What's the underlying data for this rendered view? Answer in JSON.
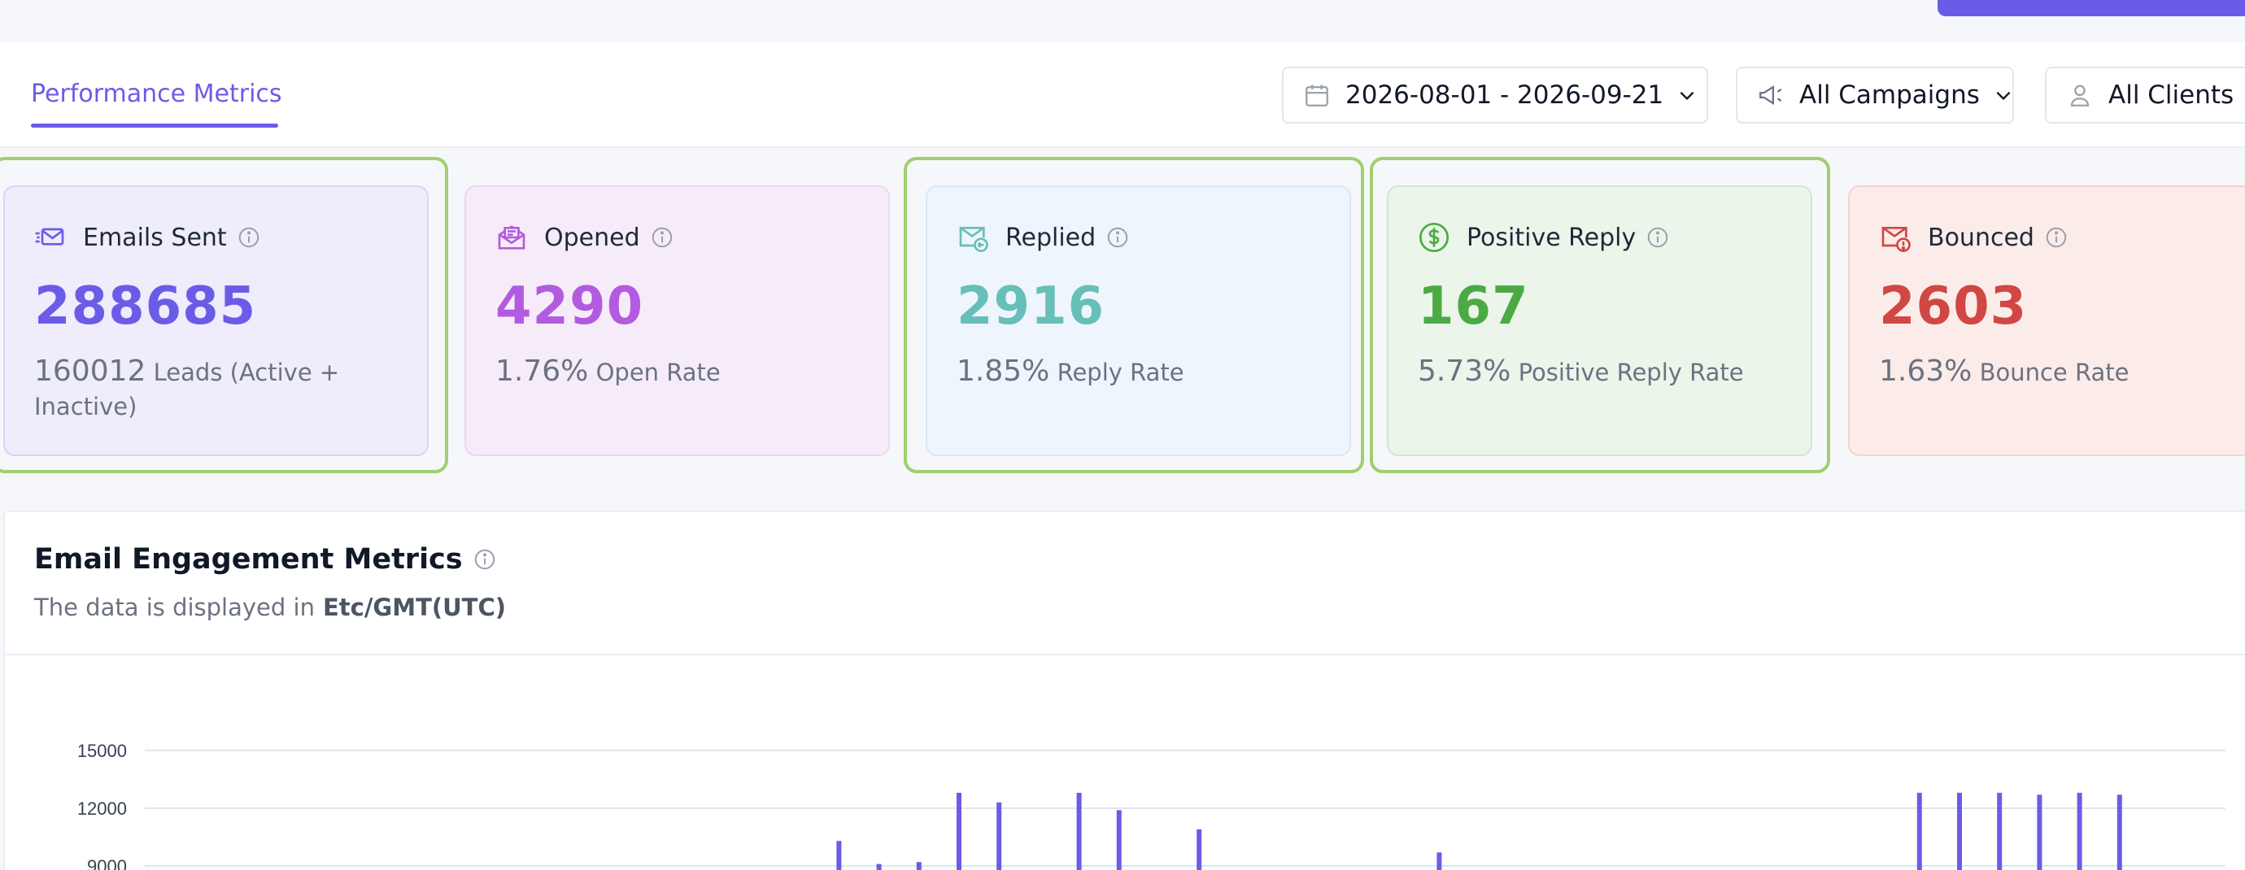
{
  "header": {
    "tab_label": "Performance Metrics",
    "filters": {
      "date_range": "2026-08-01 - 2026-09-21",
      "campaigns": "All Campaigns",
      "clients": "All Clients"
    }
  },
  "cards": [
    {
      "title": "Emails Sent",
      "value": "288685",
      "sub_value": "160012",
      "sub_label": "Leads (Active + Inactive)",
      "color": "#6b5ce7",
      "highlighted": true
    },
    {
      "title": "Opened",
      "value": "4290",
      "sub_value": "1.76%",
      "sub_label": "Open Rate",
      "color": "#b35be0",
      "highlighted": false
    },
    {
      "title": "Replied",
      "value": "2916",
      "sub_value": "1.85%",
      "sub_label": "Reply Rate",
      "color": "#66bfb8",
      "highlighted": true
    },
    {
      "title": "Positive Reply",
      "value": "167",
      "sub_value": "5.73%",
      "sub_label": "Positive Reply Rate",
      "color": "#4caa44",
      "highlighted": true
    },
    {
      "title": "Bounced",
      "value": "2603",
      "sub_value": "1.63%",
      "sub_label": "Bounce Rate",
      "color": "#d04743",
      "highlighted": false
    }
  ],
  "engagement": {
    "title": "Email Engagement Metrics",
    "subtitle_prefix": "The data is displayed in",
    "timezone": "Etc/GMT(UTC)"
  },
  "chart_data": {
    "type": "bar",
    "y_ticks": [
      15000,
      12000,
      9000
    ],
    "ylim": [
      0,
      15000
    ],
    "bar_color": "#6b5ce7",
    "bars": [
      {
        "index": 17,
        "value": 10300
      },
      {
        "index": 18,
        "value": 9100
      },
      {
        "index": 19,
        "value": 9200
      },
      {
        "index": 20,
        "value": 12800
      },
      {
        "index": 21,
        "value": 12300
      },
      {
        "index": 23,
        "value": 12800
      },
      {
        "index": 24,
        "value": 11900
      },
      {
        "index": 26,
        "value": 10900
      },
      {
        "index": 32,
        "value": 9700
      },
      {
        "index": 44,
        "value": 12800
      },
      {
        "index": 45,
        "value": 12800
      },
      {
        "index": 46,
        "value": 12800
      },
      {
        "index": 47,
        "value": 12700
      },
      {
        "index": 48,
        "value": 12800
      },
      {
        "index": 49,
        "value": 12700
      }
    ]
  }
}
